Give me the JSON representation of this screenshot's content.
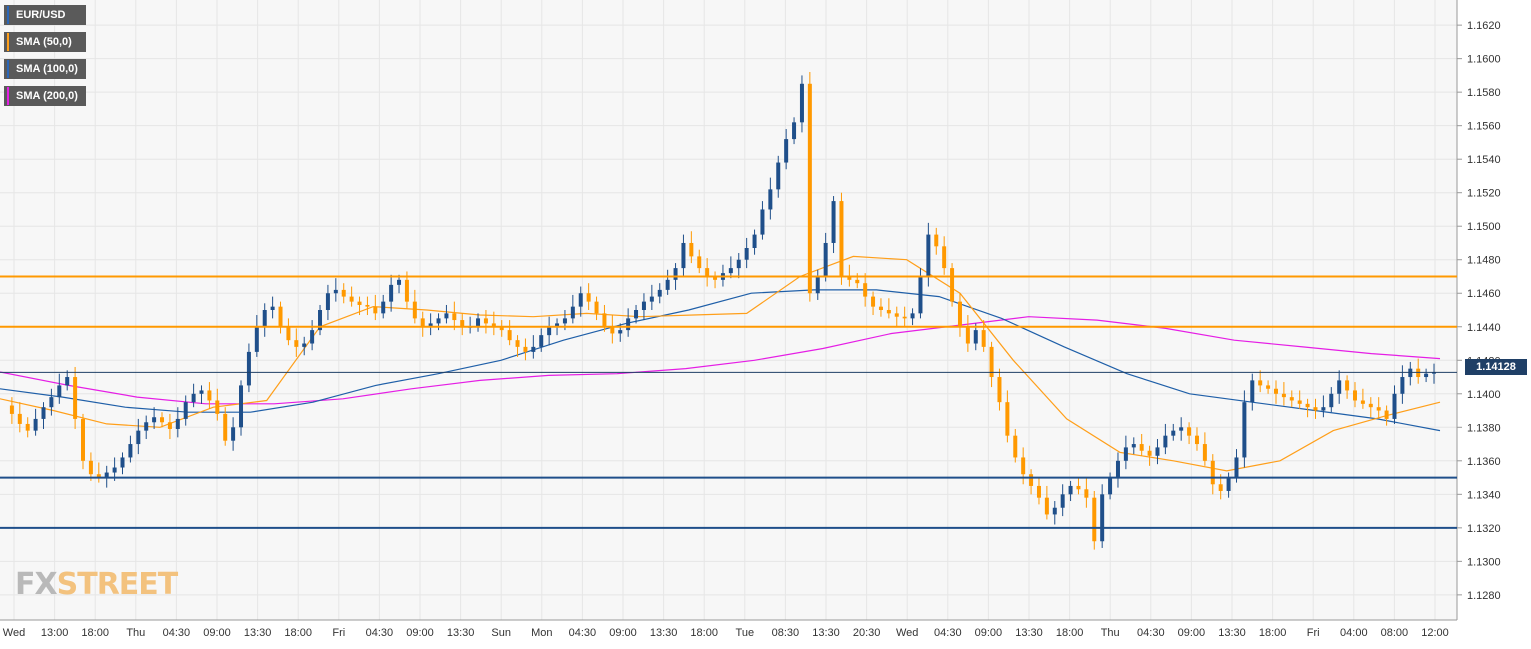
{
  "legend": [
    {
      "label": "EUR/USD",
      "color": "#1f3f66"
    },
    {
      "label": "SMA (50,0)",
      "color": "#ff9f1a"
    },
    {
      "label": "SMA (100,0)",
      "color": "#1f5fa8"
    },
    {
      "label": "SMA (200,0)",
      "color": "#e51ee5"
    }
  ],
  "price_tag": "1.14128",
  "logo": {
    "part1": "FX",
    "part2": "STREET"
  },
  "colors": {
    "up_candle": "#1f4f8a",
    "down_candle": "#ff9900",
    "sma50": "#ff9f1a",
    "sma100": "#1f5fa8",
    "sma200": "#e51ee5",
    "resistance": "#ff9900",
    "support": "#1f4f8a",
    "grid": "#e6e6e6",
    "plot_bg": "#f7f7f7"
  },
  "chart_data": {
    "type": "candlestick",
    "title": "",
    "ylim": [
      1.1265,
      1.1635
    ],
    "y_ticks": [
      "1.1620",
      "1.1600",
      "1.1580",
      "1.1560",
      "1.1540",
      "1.1520",
      "1.1500",
      "1.1480",
      "1.1460",
      "1.1440",
      "1.1420",
      "1.1400",
      "1.1380",
      "1.1360",
      "1.1340",
      "1.1320",
      "1.1300",
      "1.1280"
    ],
    "x_ticks": [
      "Wed",
      "13:00",
      "18:00",
      "Thu",
      "04:30",
      "09:00",
      "13:30",
      "18:00",
      "Fri",
      "04:30",
      "09:00",
      "13:30",
      "Sun",
      "Mon",
      "04:30",
      "09:00",
      "13:30",
      "18:00",
      "Tue",
      "08:30",
      "13:30",
      "20:30",
      "Wed",
      "04:30",
      "09:00",
      "13:30",
      "18:00",
      "Thu",
      "04:30",
      "09:00",
      "13:30",
      "18:00",
      "Fri",
      "04:00",
      "08:00",
      "12:00"
    ],
    "grid": true,
    "legend_position": "top-left",
    "current_price": 1.14128,
    "horizontal_levels": [
      {
        "value": 1.147,
        "kind": "resistance"
      },
      {
        "value": 1.144,
        "kind": "resistance"
      },
      {
        "value": 1.135,
        "kind": "support"
      },
      {
        "value": 1.132,
        "kind": "support"
      }
    ],
    "price_path": [
      1.1393,
      1.1388,
      1.1382,
      1.1378,
      1.1385,
      1.1392,
      1.1398,
      1.1405,
      1.141,
      1.1385,
      1.136,
      1.1352,
      1.135,
      1.1353,
      1.1356,
      1.1362,
      1.137,
      1.1378,
      1.1383,
      1.1386,
      1.1383,
      1.1379,
      1.1385,
      1.1395,
      1.14,
      1.1402,
      1.1396,
      1.1388,
      1.1372,
      1.138,
      1.1405,
      1.1425,
      1.144,
      1.145,
      1.1452,
      1.144,
      1.1432,
      1.1428,
      1.143,
      1.1438,
      1.145,
      1.146,
      1.1462,
      1.1458,
      1.1455,
      1.1453,
      1.1452,
      1.1448,
      1.1455,
      1.1465,
      1.1468,
      1.1455,
      1.1445,
      1.144,
      1.1442,
      1.1445,
      1.1448,
      1.1444,
      1.144,
      1.144,
      1.1445,
      1.1442,
      1.144,
      1.1438,
      1.1432,
      1.1428,
      1.1425,
      1.1428,
      1.1435,
      1.144,
      1.1442,
      1.1445,
      1.1452,
      1.146,
      1.1455,
      1.1448,
      1.144,
      1.1436,
      1.1438,
      1.1445,
      1.145,
      1.1455,
      1.1458,
      1.1462,
      1.1468,
      1.1475,
      1.149,
      1.1482,
      1.1475,
      1.147,
      1.1468,
      1.1472,
      1.1475,
      1.148,
      1.1487,
      1.1495,
      1.151,
      1.1522,
      1.1538,
      1.1552,
      1.1562,
      1.1585,
      1.146,
      1.147,
      1.149,
      1.1515,
      1.147,
      1.1468,
      1.1466,
      1.1458,
      1.1452,
      1.145,
      1.1448,
      1.1446,
      1.1445,
      1.1448,
      1.147,
      1.1495,
      1.1488,
      1.1475,
      1.1455,
      1.144,
      1.143,
      1.1438,
      1.1428,
      1.141,
      1.1395,
      1.1375,
      1.1362,
      1.1352,
      1.1345,
      1.1338,
      1.1328,
      1.1332,
      1.134,
      1.1345,
      1.1343,
      1.1338,
      1.1312,
      1.134,
      1.135,
      1.136,
      1.1368,
      1.137,
      1.1366,
      1.1363,
      1.1368,
      1.1375,
      1.1378,
      1.138,
      1.1375,
      1.137,
      1.136,
      1.1346,
      1.1342,
      1.135,
      1.1362,
      1.1395,
      1.1408,
      1.1405,
      1.1403,
      1.14,
      1.1398,
      1.1396,
      1.1394,
      1.1392,
      1.139,
      1.1392,
      1.14,
      1.1408,
      1.1402,
      1.1396,
      1.1394,
      1.1392,
      1.139,
      1.1385,
      1.14,
      1.141,
      1.1415,
      1.141,
      1.1412,
      1.1413
    ],
    "series": [
      {
        "name": "SMA (50,0)",
        "values": [
          1.1397,
          1.139,
          1.1382,
          1.138,
          1.1392,
          1.1396,
          1.144,
          1.1452,
          1.145,
          1.1447,
          1.1446,
          1.1448,
          1.1446,
          1.1447,
          1.1448,
          1.147,
          1.1482,
          1.148,
          1.146,
          1.142,
          1.1385,
          1.1365,
          1.136,
          1.1354,
          1.136,
          1.1378,
          1.1387,
          1.1395
        ]
      },
      {
        "name": "SMA (100,0)",
        "values": [
          1.1403,
          1.1398,
          1.1392,
          1.1389,
          1.1389,
          1.1395,
          1.1405,
          1.1412,
          1.142,
          1.1432,
          1.1442,
          1.145,
          1.146,
          1.1462,
          1.1462,
          1.1458,
          1.1445,
          1.1428,
          1.1412,
          1.14,
          1.1395,
          1.139,
          1.1385,
          1.1378
        ]
      },
      {
        "name": "SMA (200,0)",
        "values": [
          1.1413,
          1.1405,
          1.1398,
          1.1394,
          1.1394,
          1.1397,
          1.1403,
          1.1408,
          1.1411,
          1.1412,
          1.1415,
          1.142,
          1.1427,
          1.1436,
          1.1441,
          1.1446,
          1.1444,
          1.1439,
          1.1432,
          1.1428,
          1.1424,
          1.1421
        ]
      }
    ]
  }
}
